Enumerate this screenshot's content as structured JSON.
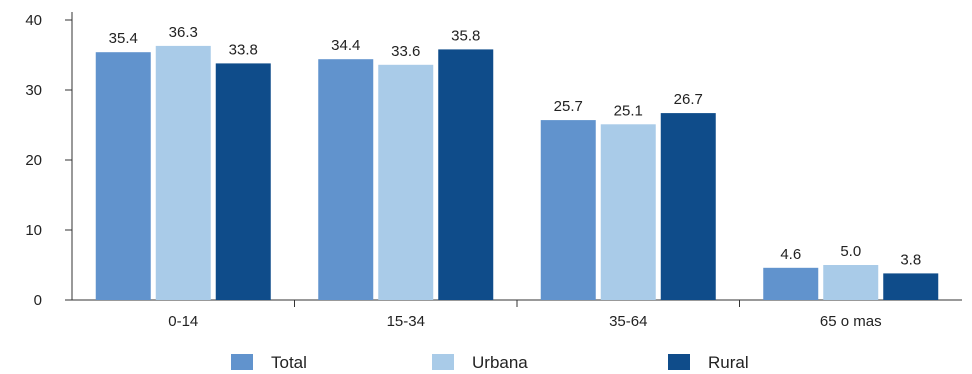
{
  "chart_data": {
    "type": "bar",
    "title": "",
    "xlabel": "",
    "ylabel": "",
    "categories": [
      "0-14",
      "15-34",
      "35-64",
      "65 o mas"
    ],
    "series": [
      {
        "name": "Total",
        "values": [
          35.4,
          34.4,
          25.7,
          4.6
        ],
        "value_labels": [
          "35.4",
          "34.4",
          "25.7",
          "4.6"
        ],
        "color": "#6193cd"
      },
      {
        "name": "Urbana",
        "values": [
          36.3,
          33.6,
          25.1,
          5.0
        ],
        "value_labels": [
          "36.3",
          "33.6",
          "25.1",
          "5.0"
        ],
        "color": "#a9cbe8"
      },
      {
        "name": "Rural",
        "values": [
          33.8,
          35.8,
          26.7,
          3.8
        ],
        "value_labels": [
          "33.8",
          "35.8",
          "26.7",
          "3.8"
        ],
        "color": "#0f4c8a"
      }
    ],
    "ylim": [
      0,
      40
    ],
    "yticks": [
      "0",
      "10",
      "20",
      "30",
      "40"
    ],
    "grid": false,
    "legend_position": "bottom-center",
    "axis_color": "#333333"
  }
}
